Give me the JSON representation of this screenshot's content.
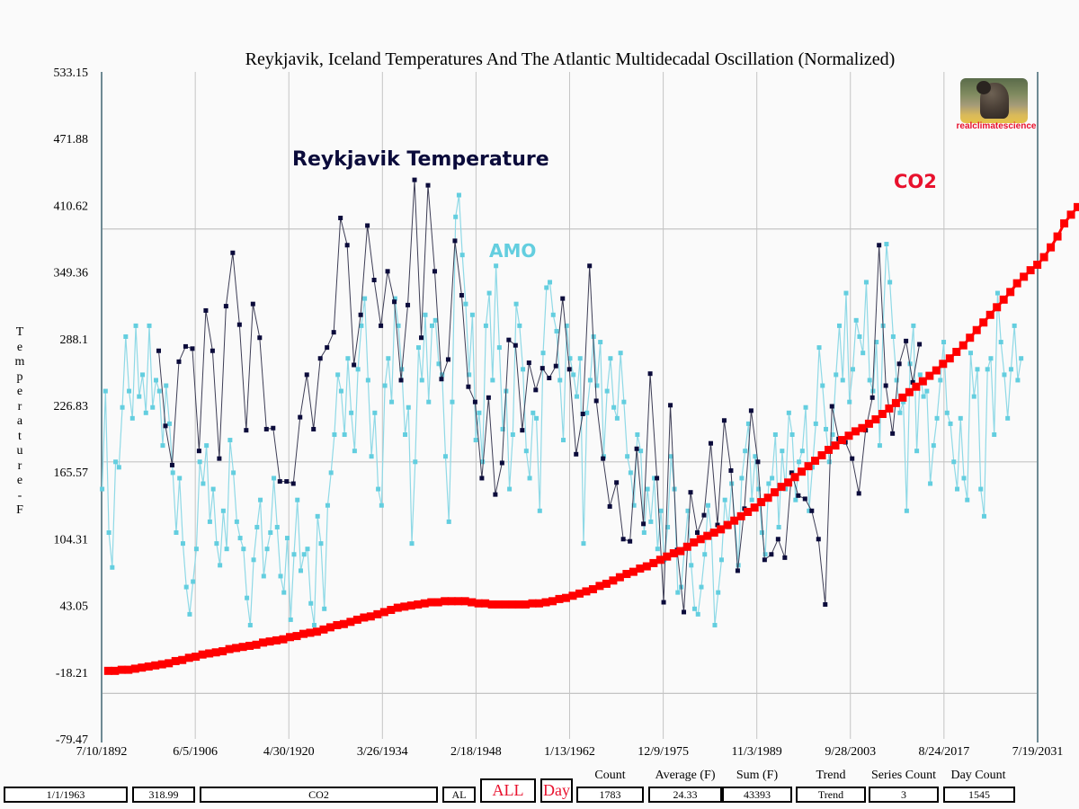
{
  "chart_data": {
    "type": "line",
    "title": "Reykjavik, Iceland Temperatures And The Atlantic Multidecadal Oscillation (Normalized)",
    "xlabel": "",
    "ylabel": "Temperature - F",
    "ylim": [
      -79.47,
      533.15
    ],
    "xlim": [
      1892.52,
      2031.55
    ],
    "yticks": [
      "533.15",
      "471.88",
      "410.62",
      "349.36",
      "288.1",
      "226.83",
      "165.57",
      "104.31",
      "43.05",
      "-18.21",
      "-79.47"
    ],
    "xticks": [
      "7/10/1892",
      "6/5/1906",
      "4/30/1920",
      "3/26/1934",
      "2/18/1948",
      "1/13/1962",
      "12/9/1975",
      "11/3/1989",
      "9/28/2003",
      "8/24/2017",
      "7/19/2031"
    ],
    "xtick_years": [
      1892.52,
      1906.43,
      1920.33,
      1934.23,
      1948.13,
      1962.03,
      1975.94,
      1989.84,
      2003.74,
      2017.64,
      2031.55
    ],
    "hgrid_values": [
      388.9,
      175.0,
      -37.7
    ],
    "grid": true,
    "series": [
      {
        "name": "Reykjavik Temperature",
        "label": "Reykjavik Temperature",
        "color": "#0b0b3b",
        "start_year": 1901,
        "step": 1,
        "values": [
          277,
          208,
          172,
          267,
          281,
          279,
          185,
          314,
          277,
          178,
          318,
          367,
          301,
          204,
          320,
          289,
          205,
          206,
          157,
          157,
          155,
          216,
          255,
          205,
          270,
          280,
          294,
          399,
          374,
          264,
          310,
          392,
          342,
          300,
          350,
          322,
          250,
          319,
          434,
          289,
          429,
          350,
          251,
          269,
          378,
          328,
          244,
          230,
          160,
          234,
          145,
          174,
          287,
          282,
          204,
          266,
          241,
          261,
          252,
          263,
          325,
          260,
          182,
          219,
          355,
          231,
          178,
          134,
          156,
          104,
          102,
          187,
          118,
          256,
          160,
          46,
          227,
          94,
          37,
          147,
          110,
          126,
          192,
          117,
          213,
          167,
          75,
          132,
          222,
          175,
          85,
          90,
          104,
          87,
          165,
          144,
          141,
          130,
          104,
          44,
          226,
          196,
          193,
          178,
          146,
          204,
          234,
          374,
          245,
          201,
          265,
          286,
          248,
          283
        ]
      },
      {
        "name": "AMO",
        "label": "AMO",
        "color": "#63cedf",
        "start_year": 1892.6,
        "step": 0.5,
        "values": [
          150,
          240,
          110,
          78,
          175,
          170,
          225,
          290,
          240,
          215,
          300,
          235,
          255,
          220,
          300,
          225,
          250,
          240,
          190,
          245,
          210,
          165,
          110,
          160,
          100,
          60,
          35,
          65,
          95,
          175,
          155,
          190,
          120,
          150,
          100,
          80,
          130,
          95,
          195,
          165,
          120,
          105,
          95,
          50,
          25,
          85,
          115,
          140,
          70,
          95,
          110,
          160,
          115,
          70,
          55,
          105,
          30,
          90,
          140,
          75,
          90,
          95,
          45,
          25,
          125,
          100,
          40,
          135,
          165,
          200,
          255,
          240,
          200,
          270,
          220,
          185,
          260,
          300,
          325,
          250,
          180,
          220,
          150,
          135,
          245,
          270,
          230,
          325,
          300,
          260,
          200,
          225,
          100,
          175,
          280,
          250,
          310,
          230,
          300,
          305,
          265,
          255,
          180,
          120,
          230,
          400,
          420,
          365,
          320,
          255,
          310,
          195,
          220,
          175,
          300,
          330,
          250,
          355,
          280,
          205,
          240,
          150,
          200,
          320,
          300,
          260,
          185,
          160,
          220,
          215,
          130,
          275,
          335,
          340,
          310,
          295,
          250,
          195,
          300,
          270,
          255,
          235,
          270,
          100,
          220,
          250,
          290,
          245,
          285,
          180,
          240,
          270,
          225,
          215,
          275,
          230,
          180,
          165,
          135,
          200,
          185,
          110,
          150,
          120,
          160,
          95,
          130,
          85,
          115,
          180,
          150,
          55,
          60,
          95,
          130,
          80,
          40,
          35,
          60,
          90,
          135,
          110,
          25,
          55,
          85,
          140,
          115,
          155,
          120,
          80,
          160,
          185,
          210,
          140,
          180,
          150,
          110,
          90,
          155,
          160,
          200,
          115,
          185,
          150,
          220,
          200,
          140,
          175,
          185,
          225,
          130,
          170,
          210,
          280,
          245,
          205,
          175,
          200,
          255,
          300,
          250,
          330,
          230,
          260,
          305,
          290,
          275,
          340,
          250,
          240,
          285,
          190,
          300,
          375,
          340,
          290,
          250,
          220,
          230,
          130,
          265,
          300,
          185,
          255,
          235,
          240,
          155,
          190,
          215,
          250,
          285,
          220,
          210,
          175,
          150,
          215,
          160,
          140,
          275,
          235,
          260,
          150,
          125,
          260,
          270,
          200,
          330,
          285,
          255,
          215,
          260,
          300,
          250,
          270
        ]
      },
      {
        "name": "CO2",
        "label": "CO2",
        "color": "#ff0000",
        "start_year": 1893.5,
        "step": 1,
        "values": [
          -17,
          -17,
          -16,
          -16,
          -15,
          -14,
          -13,
          -12,
          -11,
          -10,
          -8,
          -7,
          -5,
          -4,
          -2,
          -1,
          0,
          1,
          3,
          4,
          5,
          6,
          7,
          9,
          10,
          11,
          12,
          14,
          15,
          17,
          18,
          19,
          21,
          23,
          25,
          26,
          28,
          30,
          32,
          33,
          35,
          37,
          39,
          41,
          42,
          43,
          44,
          45,
          46,
          46,
          47,
          47,
          47,
          47,
          46,
          45,
          45,
          44,
          44,
          44,
          44,
          44,
          44,
          45,
          45,
          46,
          47,
          49,
          50,
          52,
          54,
          56,
          58,
          61,
          63,
          66,
          69,
          72,
          74,
          77,
          79,
          82,
          85,
          88,
          91,
          93,
          97,
          101,
          104,
          107,
          110,
          113,
          117,
          121,
          125,
          129,
          133,
          138,
          142,
          147,
          152,
          156,
          161,
          166,
          171,
          176,
          181,
          186,
          190,
          195,
          199,
          203,
          206,
          210,
          214,
          219,
          224,
          229,
          234,
          239,
          244,
          249,
          254,
          259,
          265,
          270,
          276,
          282,
          289,
          296,
          303,
          310,
          317,
          324,
          331,
          339,
          345,
          351,
          356,
          363,
          372,
          382,
          394,
          402,
          409,
          416,
          423
        ]
      }
    ],
    "annotations": [
      {
        "text": "Reykjavik Temperature",
        "color": "#0b0b3b"
      },
      {
        "text": "AMO",
        "color": "#63cedf"
      },
      {
        "text": "CO2",
        "color": "#e8112d"
      }
    ]
  },
  "logo": {
    "text": "realclimatescience"
  },
  "ylabel_letters": [
    "T",
    "e",
    "m",
    "p",
    "e",
    "r",
    "a",
    "t",
    "u",
    "r",
    "e",
    "-",
    "F"
  ],
  "footer": {
    "date_field": "1/1/1963",
    "value_field": "318.99",
    "series_field": "CO2",
    "region_field": "AL",
    "all_button": "ALL",
    "day_button": "Day",
    "stats": [
      {
        "label": "Count",
        "value": "1783"
      },
      {
        "label": "Average (F)",
        "value": "24.33"
      },
      {
        "label": "Sum (F)",
        "value": "43393"
      },
      {
        "label": "Trend",
        "value": "Trend"
      },
      {
        "label": "Series Count",
        "value": "3"
      },
      {
        "label": "Day Count",
        "value": "1545"
      }
    ]
  }
}
